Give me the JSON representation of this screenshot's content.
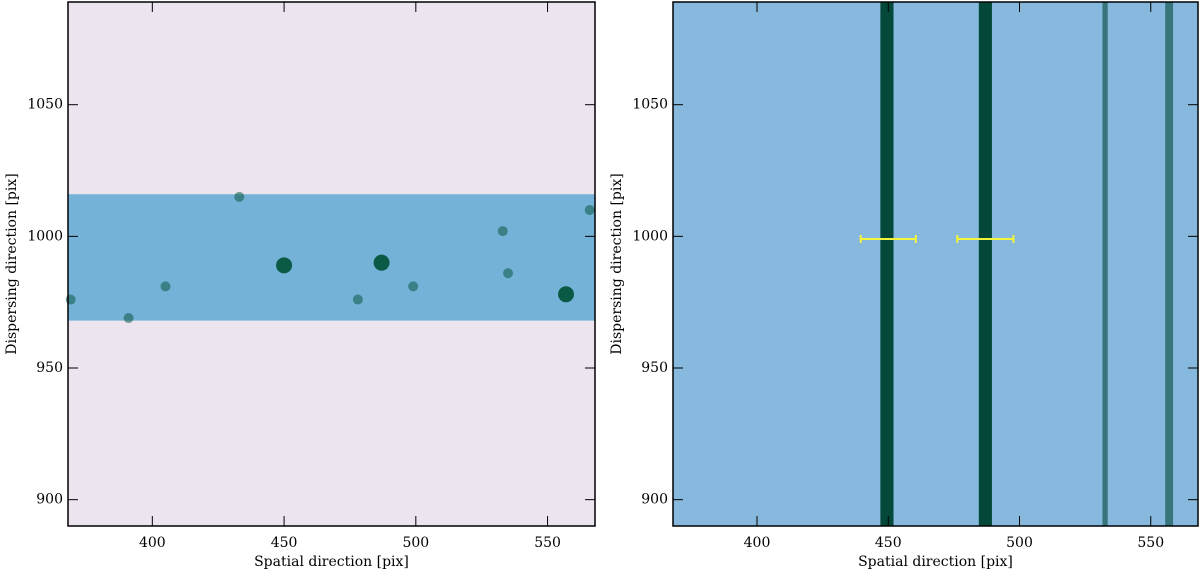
{
  "chart_data": [
    {
      "type": "image",
      "xlabel": "Spatial direction [pix]",
      "ylabel": "Dispersing direction [pix]",
      "xlim": [
        368,
        568
      ],
      "ylim": [
        890,
        1089
      ],
      "xticks": [
        400,
        450,
        500,
        550
      ],
      "yticks": [
        900,
        950,
        1000,
        1050
      ],
      "background": "#ece4ee",
      "band": {
        "ylim": [
          968,
          1016
        ],
        "color": "#74b2d8"
      },
      "sources": {
        "x": [
          450,
          487,
          557,
          533,
          535,
          478,
          499,
          405,
          369,
          391,
          433,
          566
        ],
        "y": [
          989,
          990,
          978,
          1002,
          986,
          976,
          981,
          981,
          976,
          969,
          1015,
          1010
        ],
        "color": "#0b5a45"
      }
    },
    {
      "type": "image",
      "xlabel": "Spatial direction [pix]",
      "ylabel": "Dispersing direction [pix]",
      "xlim": [
        368,
        568
      ],
      "ylim": [
        890,
        1089
      ],
      "xticks": [
        400,
        450,
        500,
        550
      ],
      "yticks": [
        900,
        950,
        1000,
        1050
      ],
      "background": "#86b9dd",
      "lines": {
        "x": [
          449.5,
          487,
          532.6,
          557
        ],
        "width": [
          5,
          5,
          2,
          3
        ],
        "color": "#04483a"
      },
      "error_bars": {
        "x": [
          450,
          487
        ],
        "y": [
          999,
          999
        ],
        "xerr": [
          10.5,
          10.7
        ],
        "color": "#f4f43a"
      }
    }
  ]
}
